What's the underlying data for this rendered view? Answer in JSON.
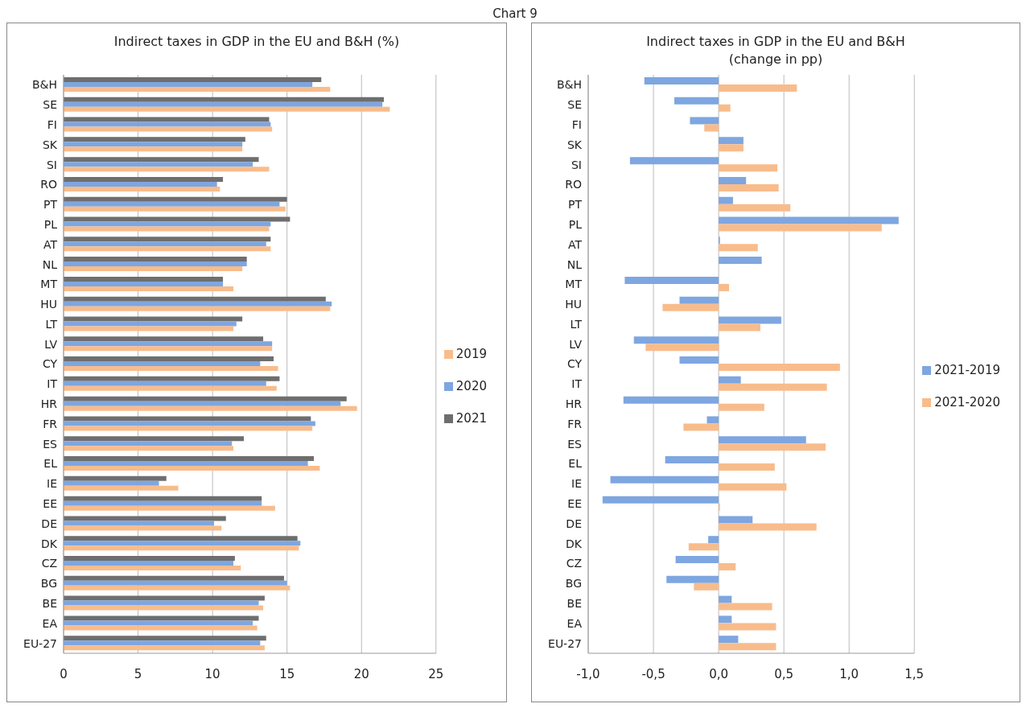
{
  "chart_data": [
    {
      "type": "bar",
      "orientation": "horizontal",
      "title": "Indirect taxes in GDP in the EU and B&H (%)",
      "annotations": [
        "Chart 9"
      ],
      "categories": [
        "B&H",
        "SE",
        "FI",
        "SK",
        "SI",
        "RO",
        "PT",
        "PL",
        "AT",
        "NL",
        "MT",
        "HU",
        "LT",
        "LV",
        "CY",
        "IT",
        "HR",
        "FR",
        "ES",
        "EL",
        "IE",
        "EE",
        "DE",
        "DK",
        "CZ",
        "BG",
        "BE",
        "EA",
        "EU-27"
      ],
      "series": [
        {
          "name": "2021",
          "color": "#6e6e6e",
          "values": [
            17.3,
            21.5,
            13.8,
            12.2,
            13.1,
            10.7,
            15.0,
            15.2,
            13.9,
            12.3,
            10.7,
            17.6,
            12.0,
            13.4,
            14.1,
            14.5,
            19.0,
            16.6,
            12.1,
            16.8,
            6.9,
            13.3,
            10.9,
            15.7,
            11.5,
            14.8,
            13.5,
            13.1,
            13.6
          ]
        },
        {
          "name": "2020",
          "color": "#7ea6e0",
          "values": [
            16.7,
            21.4,
            13.9,
            12.0,
            12.7,
            10.3,
            14.5,
            13.9,
            13.6,
            12.3,
            10.7,
            18.0,
            11.6,
            14.0,
            13.2,
            13.6,
            18.6,
            16.9,
            11.3,
            16.4,
            6.4,
            13.3,
            10.1,
            15.9,
            11.4,
            15.0,
            13.1,
            12.7,
            13.2
          ]
        },
        {
          "name": "2019",
          "color": "#f8bc8c",
          "values": [
            17.9,
            21.9,
            14.0,
            12.0,
            13.8,
            10.5,
            14.9,
            13.8,
            13.9,
            12.0,
            11.4,
            17.9,
            11.4,
            14.0,
            14.4,
            14.3,
            19.7,
            16.7,
            11.4,
            17.2,
            7.7,
            14.2,
            10.6,
            15.8,
            11.9,
            15.2,
            13.4,
            13.0,
            13.5
          ]
        }
      ],
      "xlim": [
        0,
        25
      ],
      "xticks": [
        0,
        5,
        10,
        15,
        20,
        25
      ],
      "grid": "x",
      "legend": "right"
    },
    {
      "type": "bar",
      "orientation": "horizontal",
      "title": "Indirect taxes in GDP in the EU and B&H (change in pp)",
      "categories": [
        "B&H",
        "SE",
        "FI",
        "SK",
        "SI",
        "RO",
        "PT",
        "PL",
        "AT",
        "NL",
        "MT",
        "HU",
        "LT",
        "LV",
        "CY",
        "IT",
        "HR",
        "FR",
        "ES",
        "EL",
        "IE",
        "EE",
        "DE",
        "DK",
        "CZ",
        "BG",
        "BE",
        "EA",
        "EU-27"
      ],
      "series": [
        {
          "name": "2021-2019",
          "color": "#7ea6e0",
          "values": [
            -0.57,
            -0.34,
            -0.22,
            0.19,
            -0.68,
            0.21,
            0.11,
            1.38,
            0.01,
            0.33,
            -0.72,
            -0.3,
            0.48,
            -0.65,
            -0.3,
            0.17,
            -0.73,
            -0.09,
            0.67,
            -0.41,
            -0.83,
            -0.89,
            0.26,
            -0.08,
            -0.33,
            -0.4,
            0.1,
            0.1,
            0.15
          ]
        },
        {
          "name": "2021-2020",
          "color": "#f8bc8c",
          "values": [
            0.6,
            0.09,
            -0.11,
            0.19,
            0.45,
            0.46,
            0.55,
            1.25,
            0.3,
            0,
            0.08,
            -0.43,
            0.32,
            -0.56,
            0.93,
            0.83,
            0.35,
            -0.27,
            0.82,
            0.43,
            0.52,
            0.01,
            0.75,
            -0.23,
            0.13,
            -0.19,
            0.41,
            0.44,
            0.44
          ]
        }
      ],
      "xlim": [
        -1,
        1.5
      ],
      "xticks": [
        {
          "value": -1,
          "label": "-1,0"
        },
        {
          "value": -0.5,
          "label": "-0,5"
        },
        {
          "value": 0,
          "label": "0,0"
        },
        {
          "value": 0.5,
          "label": "0,5"
        },
        {
          "value": 1,
          "label": "1,0"
        },
        {
          "value": 1.5,
          "label": "1,5"
        }
      ],
      "grid": "x",
      "legend": "right"
    }
  ]
}
